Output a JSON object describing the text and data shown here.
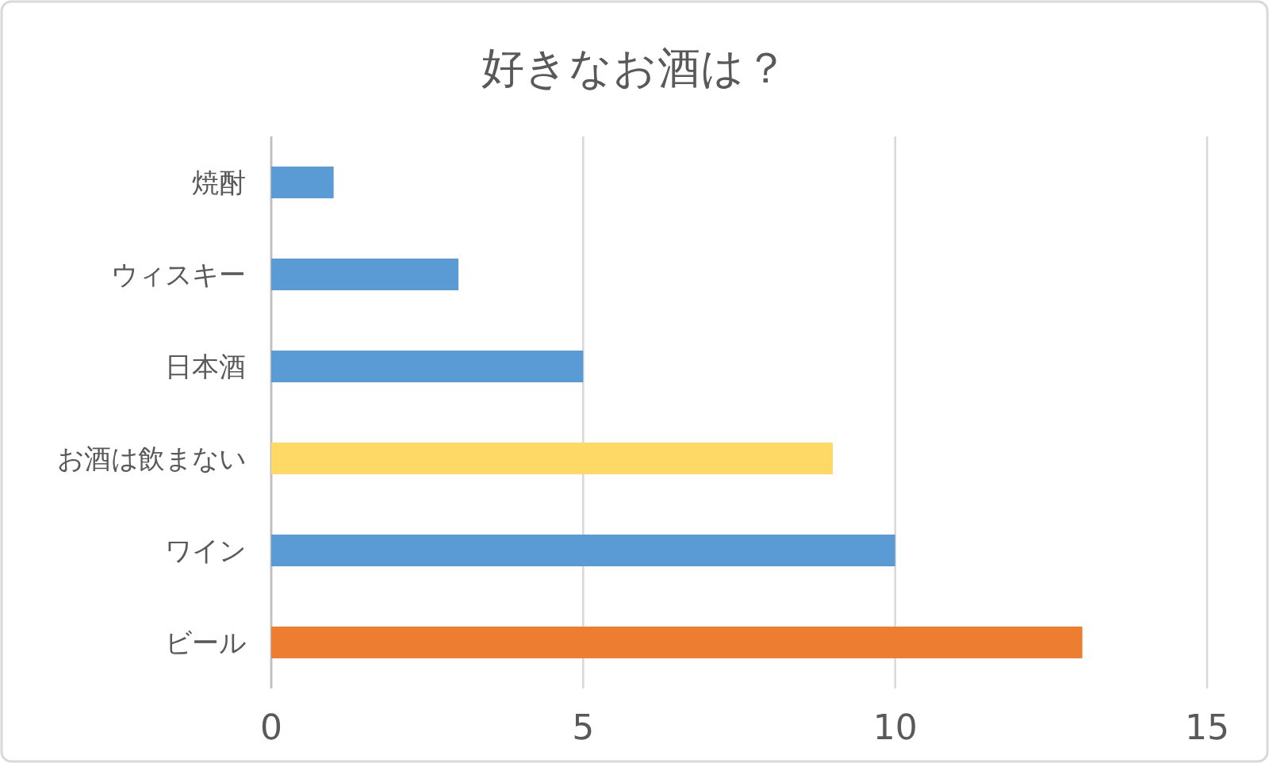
{
  "chart_data": {
    "type": "bar",
    "orientation": "horizontal",
    "title": "好きなお酒は？",
    "categories": [
      "焼酎",
      "ウィスキー",
      "日本酒",
      "お酒は飲まない",
      "ワイン",
      "ビール"
    ],
    "values": [
      1,
      3,
      5,
      9,
      10,
      13
    ],
    "colors": [
      "#5b9bd5",
      "#5b9bd5",
      "#5b9bd5",
      "#ffd966",
      "#5b9bd5",
      "#ed7d31"
    ],
    "xlim": [
      0,
      15
    ],
    "xticks": [
      0,
      5,
      10,
      15
    ],
    "grid": "x"
  }
}
